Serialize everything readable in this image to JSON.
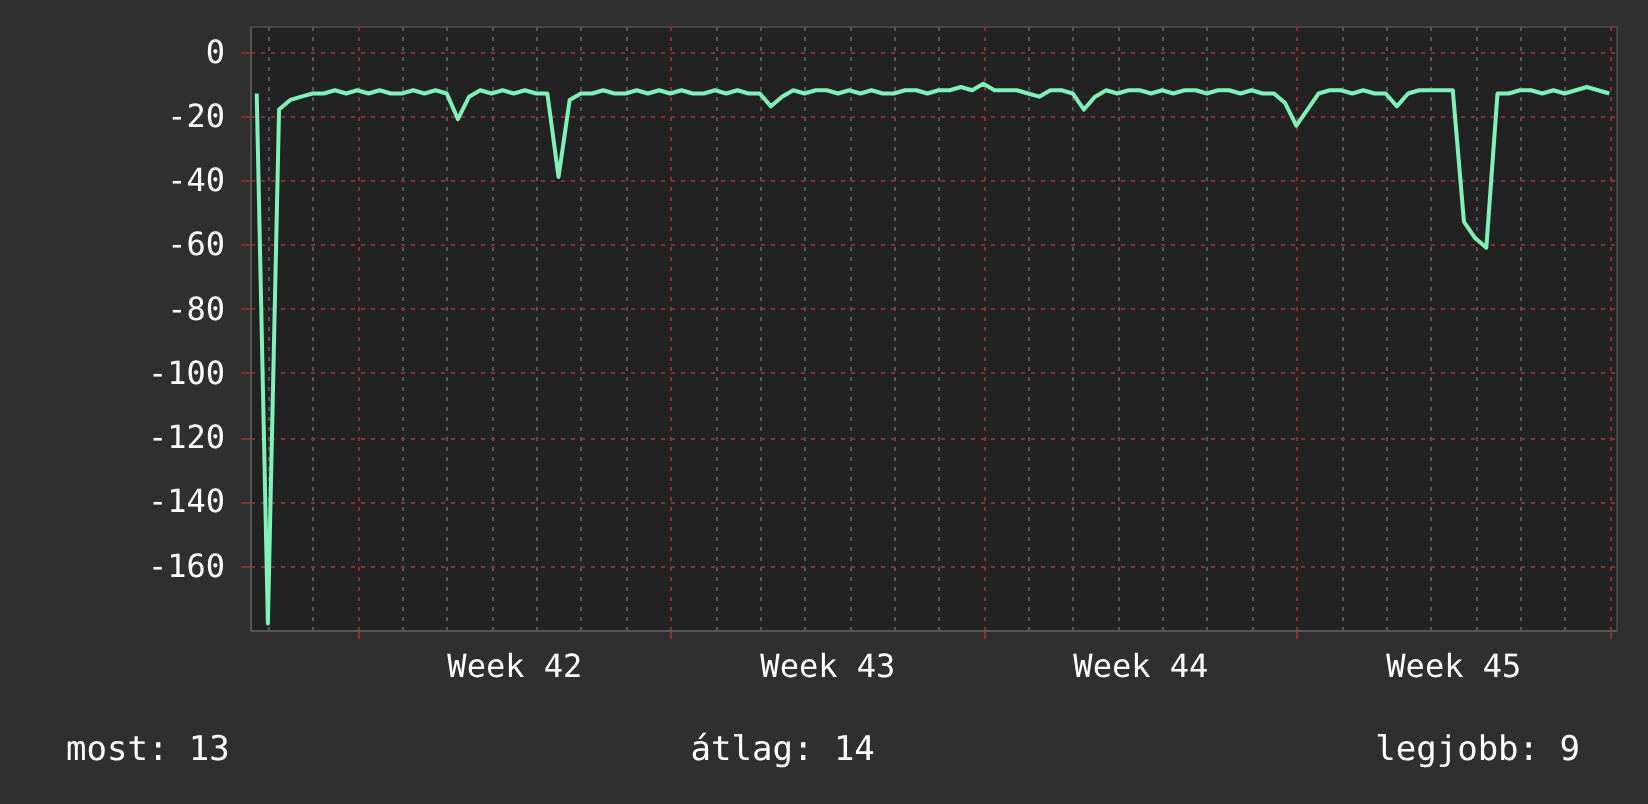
{
  "chart_data": {
    "type": "line",
    "ylim": [
      -180,
      8
    ],
    "categories": [
      null,
      null,
      null,
      null,
      null,
      null,
      null,
      null,
      null,
      null,
      null,
      null,
      null,
      null,
      null,
      null,
      null,
      null,
      null,
      null,
      null,
      null,
      null,
      "Week 42",
      null,
      null,
      null,
      null,
      null,
      null,
      null,
      null,
      null,
      null,
      null,
      null,
      null,
      null,
      null,
      null,
      null,
      null,
      null,
      null,
      null,
      null,
      null,
      null,
      null,
      null,
      null,
      "Week 43",
      null,
      null,
      null,
      null,
      null,
      null,
      null,
      null,
      null,
      null,
      null,
      null,
      null,
      null,
      null,
      null,
      null,
      null,
      null,
      null,
      null,
      null,
      null,
      null,
      null,
      null,
      null,
      "Week 44",
      null,
      null,
      null,
      null,
      null,
      null,
      null,
      null,
      null,
      null,
      null,
      null,
      null,
      null,
      null,
      null,
      null,
      null,
      null,
      null,
      null,
      null,
      null,
      null,
      null,
      null,
      null,
      "Week 45",
      null,
      null,
      null,
      null,
      null,
      null,
      null,
      null,
      null,
      null,
      null,
      null,
      null,
      null
    ],
    "yticks": [
      0,
      -20,
      -40,
      -60,
      -80,
      -100,
      -120,
      -140,
      -160
    ],
    "grid": true,
    "marker": "none",
    "line_style": "solid",
    "annotations": [
      "most: 13",
      "átlag: 14",
      "legjobb: 9"
    ],
    "series": [
      {
        "color": "#7ef2b8",
        "values": [
          -13,
          -178,
          -18,
          -15,
          -14,
          -13,
          -13,
          -12,
          -13,
          -12,
          -13,
          -12,
          -13,
          -13,
          -12,
          -13,
          -12,
          -13,
          -21,
          -14,
          -12,
          -13,
          -12,
          -13,
          -12,
          -13,
          -13,
          -39,
          -15,
          -13,
          -13,
          -12,
          -13,
          -13,
          -12,
          -13,
          -12,
          -13,
          -12,
          -13,
          -13,
          -12,
          -13,
          -12,
          -13,
          -13,
          -17,
          -14,
          -12,
          -13,
          -12,
          -12,
          -13,
          -12,
          -13,
          -12,
          -13,
          -13,
          -12,
          -12,
          -13,
          -12,
          -12,
          -11,
          -12,
          -10,
          -12,
          -12,
          -12,
          -13,
          -14,
          -12,
          -12,
          -13,
          -18,
          -14,
          -12,
          -13,
          -12,
          -12,
          -13,
          -12,
          -13,
          -12,
          -12,
          -13,
          -12,
          -12,
          -13,
          -12,
          -13,
          -13,
          -16,
          -23,
          -18,
          -13,
          -12,
          -12,
          -13,
          -12,
          -13,
          -13,
          -17,
          -13,
          -12,
          -12,
          -12,
          -12,
          -53,
          -58,
          -61,
          -13,
          -13,
          -12,
          -12,
          -13,
          -12,
          -13,
          -12,
          -11,
          -12,
          -13
        ]
      }
    ]
  }
}
